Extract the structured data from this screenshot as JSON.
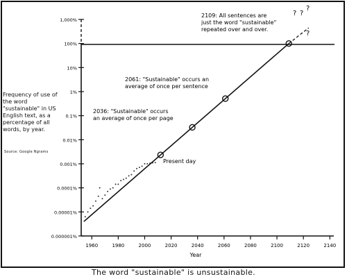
{
  "caption": "The word \"sustainable\" is unsustainable.",
  "chart_data": {
    "type": "line",
    "title": "",
    "xlabel": "Year",
    "ylabel": "Frequency of use of the word \"sustainable\" in US English text, as a percentage of all words, by year.",
    "source": "Source: Google Ngrams",
    "xlim": [
      1952,
      2143
    ],
    "y_scale": "log",
    "y_ticks": [
      "0.000001%",
      "0.00001%",
      "0.0001%",
      "0.001%",
      "0.01%",
      "0.1%",
      "1%",
      "10%",
      "100%",
      "1,000%"
    ],
    "y_tick_exponents": [
      -6,
      -5,
      -4,
      -3,
      -2,
      -1,
      0,
      1,
      2,
      3
    ],
    "x_ticks": [
      1960,
      1980,
      2000,
      2020,
      2040,
      2060,
      2080,
      2100,
      2120,
      2140
    ],
    "reference_line": {
      "label": "100%",
      "y_exp": 2
    },
    "trend_line": {
      "x": [
        1954,
        2109
      ],
      "y_exp": [
        -5.4,
        2.0
      ]
    },
    "extrapolation": {
      "x": [
        2109,
        2124
      ],
      "y_exp": [
        2.0,
        2.65
      ]
    },
    "scatter": {
      "name": "observed",
      "x": [
        1955,
        1957,
        1959,
        1961,
        1963,
        1965,
        1966,
        1968,
        1970,
        1972,
        1974,
        1976,
        1978,
        1980,
        1982,
        1984,
        1986,
        1988,
        1990,
        1992,
        1994,
        1996,
        1998,
        2000,
        2002,
        2004,
        2006,
        2008
      ],
      "y_exp": [
        -5.2,
        -5.0,
        -4.85,
        -4.75,
        -4.55,
        -4.35,
        -4.0,
        -4.45,
        -4.3,
        -4.15,
        -4.05,
        -4.0,
        -3.85,
        -3.85,
        -3.7,
        -3.65,
        -3.6,
        -3.5,
        -3.45,
        -3.3,
        -3.2,
        -3.15,
        -3.1,
        -3.0,
        -3.0,
        -2.98,
        -2.96,
        -2.95
      ]
    },
    "annotations": [
      {
        "x": 2012,
        "y_exp": -2.6,
        "text": "Present day"
      },
      {
        "x": 2036,
        "y_exp": -1.45,
        "text": "2036: \"Sustainable\" occurs an average of once per page"
      },
      {
        "x": 2061,
        "y_exp": -0.3,
        "text": "2061: \"Sustainable\" occurs an average of once per sentence"
      },
      {
        "x": 2109,
        "y_exp": 2.0,
        "text": "2109: All sentences are just the word \"sustainable\" repeated over and over."
      }
    ],
    "question_marks": [
      "?",
      "?",
      "?",
      "?"
    ]
  },
  "labels": {
    "ann_present": "Present day",
    "ann_2036_a": "2036: \"Sustainable\" occurs",
    "ann_2036_b": "an average of once per page",
    "ann_2061_a": "2061: \"Sustainable\" occurs an",
    "ann_2061_b": "average of once per sentence",
    "ann_2109_a": "2109: All sentences are",
    "ann_2109_b": "just the word \"sustainable\"",
    "ann_2109_c": "repeated over and over.",
    "ylabel_text": "Frequency of use of the word \"sustainable\" in US English text, as a percentage of all words, by year.",
    "source_text": "Source: Google Ngrams",
    "xlabel_text": "Year"
  }
}
